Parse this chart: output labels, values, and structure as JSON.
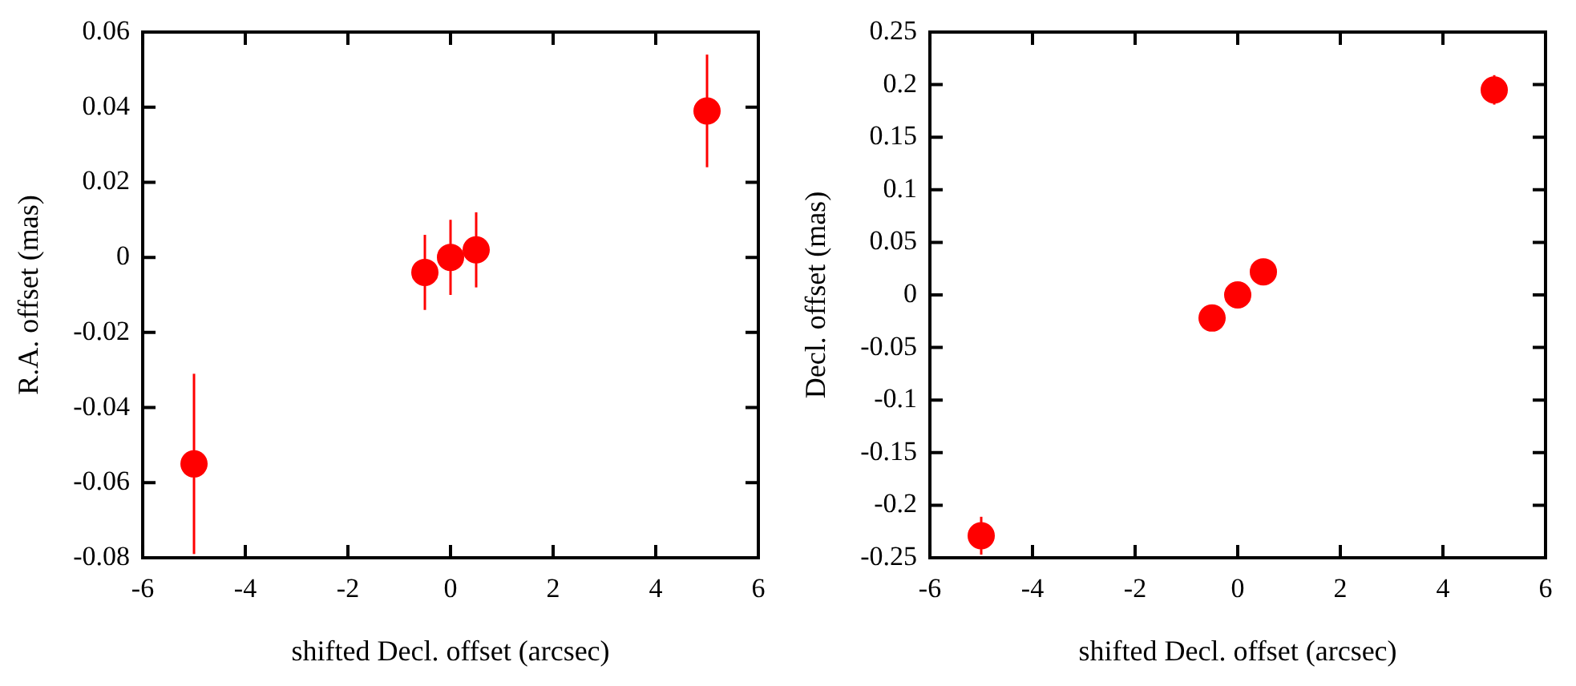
{
  "chart_data": [
    {
      "type": "scatter",
      "xlabel": "shifted Decl. offset (arcsec)",
      "ylabel": "R.A. offset (mas)",
      "x": [
        -5,
        -0.5,
        0,
        0.5,
        5
      ],
      "series": [
        {
          "color": "#ff0000",
          "values": [
            -0.055,
            -0.004,
            0,
            0.002,
            0.039
          ],
          "errors": [
            [
              -0.079,
              -0.031
            ],
            0.01,
            0.01,
            0.01,
            0.015
          ]
        }
      ],
      "xlim": [
        -6,
        6
      ],
      "xticks": [
        -6,
        -4,
        -2,
        0,
        2,
        4,
        6
      ],
      "ylim": [
        -0.08,
        0.06
      ],
      "yticks": [
        -0.08,
        -0.06,
        -0.04,
        -0.02,
        0,
        0.02,
        0.04,
        0.06
      ],
      "grid": false,
      "legend": false,
      "marker": "circle"
    },
    {
      "type": "scatter",
      "xlabel": "shifted Decl. offset (arcsec)",
      "ylabel": "Decl. offset (mas)",
      "x": [
        -5,
        -0.5,
        0,
        0.5,
        5
      ],
      "series": [
        {
          "color": "#ff0000",
          "values": [
            -0.229,
            -0.022,
            0,
            0.022,
            0.195
          ],
          "errors": [
            0.018,
            null,
            null,
            null,
            0.014
          ]
        }
      ],
      "xlim": [
        -6,
        6
      ],
      "xticks": [
        -6,
        -4,
        -2,
        0,
        2,
        4,
        6
      ],
      "ylim": [
        -0.25,
        0.25
      ],
      "yticks": [
        -0.25,
        -0.2,
        -0.15,
        -0.1,
        -0.05,
        0,
        0.05,
        0.1,
        0.15,
        0.2,
        0.25
      ],
      "grid": false,
      "legend": false,
      "marker": "circle"
    }
  ]
}
